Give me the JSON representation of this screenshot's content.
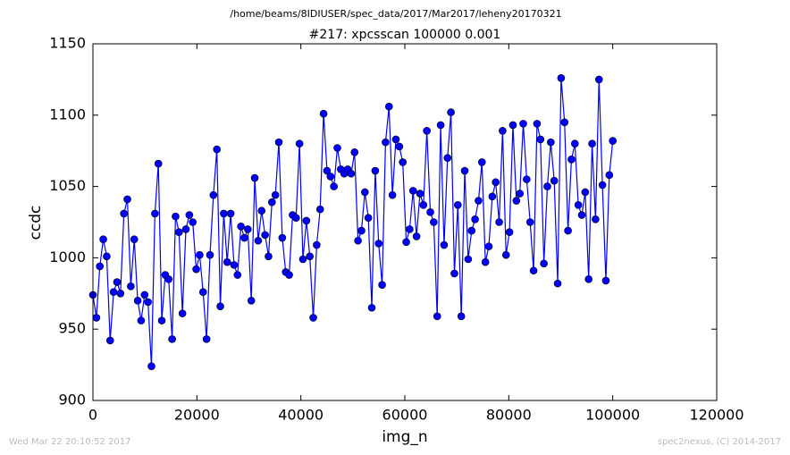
{
  "chart_data": {
    "type": "line",
    "suptitle": "/home/beams/8IDIUSER/spec_data/2017/Mar2017/leheny20170321",
    "title": "#217: xpcsscan 100000 0.001",
    "x_label": "img_n",
    "y_label": "ccdc",
    "footer_left": "Wed Mar 22 20:10:52 2017",
    "footer_right": "spec2nexus, (C) 2014-2017",
    "xlim": [
      0,
      120000
    ],
    "xticks": [
      0,
      20000,
      40000,
      60000,
      80000,
      100000,
      120000
    ],
    "ylim": [
      900,
      1150
    ],
    "yticks": [
      900,
      950,
      1000,
      1050,
      1100,
      1150
    ],
    "grid": false,
    "marker": "circle",
    "series": [
      {
        "color": "#0000ff",
        "x": [
          0,
          662,
          1325,
          1987,
          2649,
          3311,
          3974,
          4636,
          5298,
          5960,
          6623,
          7285,
          7947,
          8609,
          9272,
          9934,
          10596,
          11258,
          11921,
          12583,
          13245,
          13907,
          14570,
          15232,
          15894,
          16556,
          17219,
          17881,
          18543,
          19205,
          19868,
          20530,
          21192,
          21854,
          22517,
          23179,
          23841,
          24503,
          25166,
          25828,
          26490,
          27152,
          27815,
          28477,
          29139,
          29801,
          30464,
          31126,
          31788,
          32450,
          33113,
          33775,
          34437,
          35099,
          35762,
          36424,
          37086,
          37748,
          38411,
          39073,
          39735,
          40397,
          41060,
          41722,
          42384,
          43046,
          43709,
          44371,
          45033,
          45695,
          46358,
          47020,
          47682,
          48344,
          49007,
          49669,
          50331,
          50993,
          51656,
          52318,
          52980,
          53642,
          54305,
          54967,
          55629,
          56291,
          56954,
          57616,
          58278,
          58940,
          59603,
          60265,
          60927,
          61589,
          62252,
          62914,
          63576,
          64238,
          64901,
          65563,
          66225,
          66887,
          67550,
          68212,
          68874,
          69536,
          70199,
          70861,
          71523,
          72185,
          72848,
          73510,
          74172,
          74834,
          75497,
          76159,
          76821,
          77483,
          78146,
          78808,
          79470,
          80132,
          80795,
          81457,
          82119,
          82781,
          83444,
          84106,
          84768,
          85430,
          86093,
          86755,
          87417,
          88079,
          88742,
          89404,
          90066,
          90728,
          91391,
          92053,
          92715,
          93377,
          94040,
          94702,
          95364,
          96026,
          96689,
          97351,
          98013,
          98675,
          99338,
          100000
        ],
        "values": [
          974,
          958,
          994,
          1013,
          1001,
          942,
          976,
          983,
          975,
          1031,
          1041,
          980,
          1013,
          970,
          956,
          974,
          969,
          924,
          1031,
          1066,
          956,
          988,
          985,
          943,
          1029,
          1018,
          961,
          1020,
          1030,
          1025,
          992,
          1002,
          976,
          943,
          1002,
          1044,
          1076,
          966,
          1031,
          997,
          1031,
          995,
          988,
          1022,
          1014,
          1020,
          970,
          1056,
          1012,
          1033,
          1016,
          1001,
          1039,
          1044,
          1081,
          1014,
          990,
          988,
          1030,
          1028,
          1080,
          999,
          1026,
          1001,
          958,
          1009,
          1034,
          1101,
          1061,
          1057,
          1050,
          1077,
          1062,
          1059,
          1062,
          1059,
          1074,
          1012,
          1019,
          1046,
          1028,
          965,
          1061,
          1010,
          981,
          1081,
          1106,
          1044,
          1083,
          1078,
          1067,
          1011,
          1020,
          1047,
          1015,
          1045,
          1037,
          1089,
          1032,
          1025,
          959,
          1093,
          1009,
          1070,
          1102,
          989,
          1037,
          959,
          1061,
          999,
          1019,
          1027,
          1040,
          1067,
          997,
          1008,
          1043,
          1053,
          1025,
          1089,
          1002,
          1018,
          1093,
          1040,
          1045,
          1094,
          1055,
          1025,
          991,
          1094,
          1083,
          996,
          1050,
          1081,
          1054,
          982,
          1126,
          1095,
          1019,
          1069,
          1080,
          1037,
          1030,
          1046,
          985,
          1080,
          1027,
          1125,
          1051,
          984,
          1058,
          1082
        ]
      }
    ]
  }
}
